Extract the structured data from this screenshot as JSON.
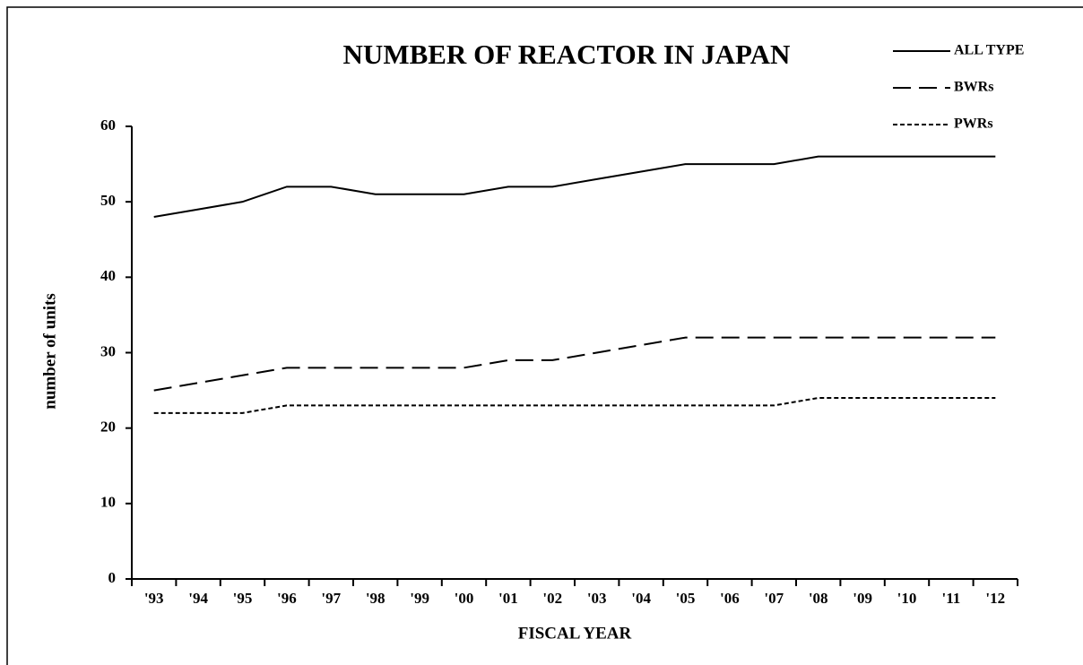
{
  "chart_data": {
    "type": "line",
    "title": "NUMBER OF REACTOR IN JAPAN",
    "x_label": "FISCAL YEAR",
    "y_label": "number of units",
    "categories": [
      "'93",
      "'94",
      "'95",
      "'96",
      "'97",
      "'98",
      "'99",
      "'00",
      "'01",
      "'02",
      "'03",
      "'04",
      "'05",
      "'06",
      "'07",
      "'08",
      "'09",
      "'10",
      "'11",
      "'12"
    ],
    "series": [
      {
        "name": "ALL TYPE",
        "color": "#000000",
        "style": "solid",
        "values": [
          48,
          49,
          50,
          52,
          52,
          51,
          51,
          51,
          52,
          52,
          53,
          54,
          55,
          55,
          55,
          56,
          56,
          56,
          56,
          56
        ]
      },
      {
        "name": "BWRs",
        "color": "#000000",
        "style": "dashed",
        "values": [
          25,
          26,
          27,
          28,
          28,
          28,
          28,
          28,
          29,
          29,
          30,
          31,
          32,
          32,
          32,
          32,
          32,
          32,
          32,
          32
        ]
      },
      {
        "name": "PWRs",
        "color": "#000000",
        "style": "dotted",
        "values": [
          22,
          22,
          22,
          23,
          23,
          23,
          23,
          23,
          23,
          23,
          23,
          23,
          23,
          23,
          23,
          24,
          24,
          24,
          24,
          24
        ]
      }
    ],
    "ylim": [
      0,
      60
    ],
    "yticks": [
      0,
      10,
      20,
      30,
      40,
      50,
      60
    ],
    "grid": false,
    "legend": "top-right"
  }
}
